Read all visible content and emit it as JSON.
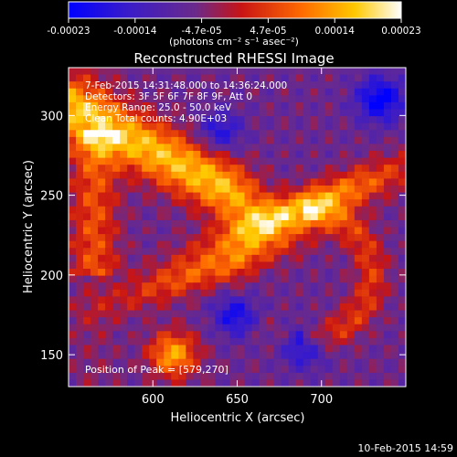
{
  "colorbar": {
    "ticks": [
      "-0.00023",
      "-0.00014",
      "-4.7e-05",
      "4.7e-05",
      "0.00014",
      "0.00023"
    ],
    "units_label": "(photons cm⁻² s⁻¹ asec⁻²)"
  },
  "chart_data": {
    "type": "heatmap",
    "title": "Reconstructed RHESSI Image",
    "xlabel": "Heliocentric X (arcsec)",
    "ylabel": "Heliocentric Y (arcsec)",
    "xlim": [
      550,
      750
    ],
    "ylim": [
      130,
      330
    ],
    "xticks": [
      "600",
      "650",
      "700"
    ],
    "yticks": [
      "150",
      "200",
      "250",
      "300"
    ],
    "xtick_values": [
      600,
      650,
      700
    ],
    "ytick_values": [
      150,
      200,
      250,
      300
    ],
    "color_range": [
      -0.00023,
      0.00023
    ],
    "colormap": "rhessi-hot",
    "annotations": [
      "7-Feb-2015 14:31:48.000 to 14:36:24.000",
      "Detectors: 3F 5F 6F 7F 8F 9F, Att 0",
      "Energy Range: 25.0 - 50.0 keV",
      "Clean     Total counts: 4.90E+03"
    ],
    "peak_label": "Position of Peak = [579,270]",
    "peak": [
      579,
      270
    ],
    "features": [
      {
        "desc": "bright arc upper-left",
        "x": 575,
        "y": 290,
        "level": 0.00021
      },
      {
        "desc": "bright ridge center-right",
        "x": 690,
        "y": 245,
        "level": 0.00019
      },
      {
        "desc": "medium ridge center",
        "x": 640,
        "y": 215,
        "level": 0.00012
      },
      {
        "desc": "bright blob lower-left",
        "x": 620,
        "y": 150,
        "level": 0.00018
      },
      {
        "desc": "right arc",
        "x": 720,
        "y": 175,
        "level": 0.0001
      }
    ]
  },
  "footer": {
    "date": "10-Feb-2015 14:59"
  }
}
